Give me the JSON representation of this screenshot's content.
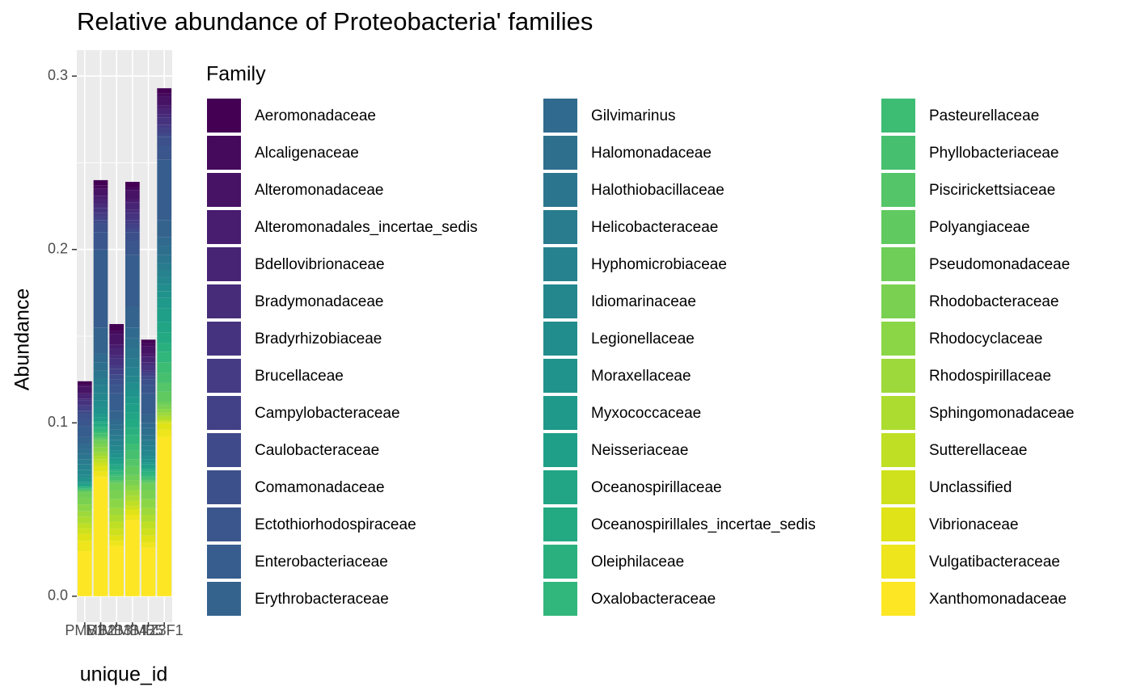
{
  "chart_data": {
    "type": "stacked_bar",
    "title": "Relative abundance of Proteobacteria' families",
    "x_label": "unique_id",
    "y_label": "Abundance",
    "legend_title": "Family",
    "categories": [
      "PMB1",
      "MB2",
      "MB3",
      "MB4",
      "MB5",
      "IZ3F1"
    ],
    "ylim": [
      -0.015,
      0.315
    ],
    "yticks": [
      {
        "value": 0,
        "label": "0.0"
      },
      0.1,
      0.2,
      0.3
    ],
    "grid": true,
    "series": [
      {
        "name": "Aeromonadaceae",
        "color": "#440154",
        "values": [
          0.002,
          0.003,
          0.004,
          0.003,
          0.002,
          0.003
        ]
      },
      {
        "name": "Alcaligenaceae",
        "color": "#450a5c",
        "values": [
          0.001,
          0.002,
          0.002,
          0.002,
          0.002,
          0.002
        ]
      },
      {
        "name": "Alteromonadaceae",
        "color": "#471365",
        "values": [
          0.004,
          0.004,
          0.006,
          0.005,
          0.004,
          0.005
        ]
      },
      {
        "name": "Alteromonadales_incertae_sedis",
        "color": "#481c6e",
        "values": [
          0.001,
          0.002,
          0.002,
          0.002,
          0.002,
          0.002
        ]
      },
      {
        "name": "Bdellovibrionaceae",
        "color": "#482475",
        "values": [
          0.002,
          0.003,
          0.004,
          0.004,
          0.003,
          0.003
        ]
      },
      {
        "name": "Bradymonadaceae",
        "color": "#472c7a",
        "values": [
          0.001,
          0.002,
          0.002,
          0.002,
          0.002,
          0.002
        ]
      },
      {
        "name": "Bradyrhizobiaceae",
        "color": "#46337f",
        "values": [
          0.003,
          0.003,
          0.004,
          0.004,
          0.003,
          0.004
        ]
      },
      {
        "name": "Brucellaceae",
        "color": "#443b84",
        "values": [
          0.001,
          0.002,
          0.002,
          0.002,
          0.001,
          0.002
        ]
      },
      {
        "name": "Campylobacteraceae",
        "color": "#424086",
        "values": [
          0.002,
          0.002,
          0.003,
          0.003,
          0.002,
          0.003
        ]
      },
      {
        "name": "Caulobacteraceae",
        "color": "#3e4a89",
        "values": [
          0.002,
          0.002,
          0.003,
          0.002,
          0.002,
          0.002
        ]
      },
      {
        "name": "Comamonadaceae",
        "color": "#3c508b",
        "values": [
          0.003,
          0.005,
          0.003,
          0.005,
          0.003,
          0.005
        ]
      },
      {
        "name": "Ectothiorhodospiraceae",
        "color": "#3a568c",
        "values": [
          0.004,
          0.01,
          0.005,
          0.008,
          0.005,
          0.008
        ]
      },
      {
        "name": "Enterobacteriaceae",
        "color": "#365d8d",
        "values": [
          0.006,
          0.045,
          0.01,
          0.03,
          0.012,
          0.035
        ]
      },
      {
        "name": "Erythrobacteraceae",
        "color": "#34638d",
        "values": [
          0.004,
          0.015,
          0.005,
          0.012,
          0.005,
          0.01
        ]
      },
      {
        "name": "Gilvimarinus",
        "color": "#306a8e",
        "values": [
          0.003,
          0.005,
          0.003,
          0.006,
          0.003,
          0.005
        ]
      },
      {
        "name": "Halomonadaceae",
        "color": "#2e6f8e",
        "values": [
          0.003,
          0.005,
          0.003,
          0.006,
          0.004,
          0.005
        ]
      },
      {
        "name": "Halothiobacillaceae",
        "color": "#2b758e",
        "values": [
          0.003,
          0.004,
          0.003,
          0.006,
          0.003,
          0.005
        ]
      },
      {
        "name": "Helicobacteraceae",
        "color": "#287c8e",
        "values": [
          0.003,
          0.004,
          0.003,
          0.005,
          0.003,
          0.004
        ]
      },
      {
        "name": "Hyphomicrobiaceae",
        "color": "#26828e",
        "values": [
          0.003,
          0.005,
          0.003,
          0.005,
          0.003,
          0.004
        ]
      },
      {
        "name": "Idiomarinaceae",
        "color": "#24878e",
        "values": [
          0.003,
          0.004,
          0.003,
          0.004,
          0.003,
          0.004
        ]
      },
      {
        "name": "Legionellaceae",
        "color": "#228d8d",
        "values": [
          0.002,
          0.004,
          0.002,
          0.004,
          0.002,
          0.004
        ]
      },
      {
        "name": "Moraxellaceae",
        "color": "#20938c",
        "values": [
          0.002,
          0.004,
          0.002,
          0.004,
          0.002,
          0.004
        ]
      },
      {
        "name": "Myxococcaceae",
        "color": "#1f998a",
        "values": [
          0.001,
          0.002,
          0.002,
          0.004,
          0.001,
          0.006
        ]
      },
      {
        "name": "Neisseriaceae",
        "color": "#1f9f88",
        "values": [
          0.001,
          0.002,
          0.002,
          0.005,
          0.002,
          0.008
        ]
      },
      {
        "name": "Oceanospirillaceae",
        "color": "#21a585",
        "values": [
          0,
          0.001,
          0.001,
          0.004,
          0.001,
          0.006
        ]
      },
      {
        "name": "Oceanospirillales_incertae_sedis",
        "color": "#24aa83",
        "values": [
          0.001,
          0.002,
          0.002,
          0.005,
          0.001,
          0.006
        ]
      },
      {
        "name": "Oleiphilaceae",
        "color": "#2ab07f",
        "values": [
          0,
          0.001,
          0.001,
          0.004,
          0.001,
          0.005
        ]
      },
      {
        "name": "Oxalobacteraceae",
        "color": "#31b67b",
        "values": [
          0.001,
          0.002,
          0.002,
          0.005,
          0.002,
          0.006
        ]
      },
      {
        "name": "Pasteurellaceae",
        "color": "#3dbc74",
        "values": [
          0,
          0.001,
          0.001,
          0.004,
          0.001,
          0.006
        ]
      },
      {
        "name": "Phyllobacteriaceae",
        "color": "#46c06f",
        "values": [
          0.001,
          0.002,
          0.002,
          0.005,
          0.001,
          0.006
        ]
      },
      {
        "name": "Piscirickettsiaceae",
        "color": "#54c568",
        "values": [
          0,
          0.001,
          0.001,
          0.004,
          0.001,
          0.005
        ]
      },
      {
        "name": "Polyangiaceae",
        "color": "#60ca60",
        "values": [
          0.001,
          0.001,
          0.001,
          0.005,
          0.001,
          0.006
        ]
      },
      {
        "name": "Pseudomonadaceae",
        "color": "#6ece58",
        "values": [
          0.003,
          0.002,
          0.004,
          0.003,
          0.004,
          0.002
        ]
      },
      {
        "name": "Rhodobacteraceae",
        "color": "#7ad151",
        "values": [
          0.004,
          0.002,
          0.005,
          0.003,
          0.005,
          0.002
        ]
      },
      {
        "name": "Rhodocyclaceae",
        "color": "#8bd646",
        "values": [
          0.004,
          0.003,
          0.005,
          0.003,
          0.005,
          0.002
        ]
      },
      {
        "name": "Rhodospirillaceae",
        "color": "#9dd93b",
        "values": [
          0.003,
          0.002,
          0.004,
          0.003,
          0.004,
          0.002
        ]
      },
      {
        "name": "Sphingomonadaceae",
        "color": "#addc30",
        "values": [
          0.004,
          0.002,
          0.004,
          0.003,
          0.004,
          0.002
        ]
      },
      {
        "name": "Sutterellaceae",
        "color": "#bfdf25",
        "values": [
          0.003,
          0.002,
          0.004,
          0.003,
          0.004,
          0.001
        ]
      },
      {
        "name": "Unclassified",
        "color": "#cfe11c",
        "values": [
          0.003,
          0.002,
          0.004,
          0.002,
          0.004,
          0.001
        ]
      },
      {
        "name": "Vibrionaceae",
        "color": "#dfe318",
        "values": [
          0.004,
          0.003,
          0.003,
          0.003,
          0.004,
          0.004
        ]
      },
      {
        "name": "Vulgatibacteraceae",
        "color": "#efe51c",
        "values": [
          0.006,
          0.003,
          0.003,
          0.003,
          0.003,
          0.004
        ]
      },
      {
        "name": "Xanthomonadaceae",
        "color": "#fde725",
        "values": [
          0.026,
          0.069,
          0.029,
          0.044,
          0.028,
          0.092
        ]
      }
    ]
  }
}
